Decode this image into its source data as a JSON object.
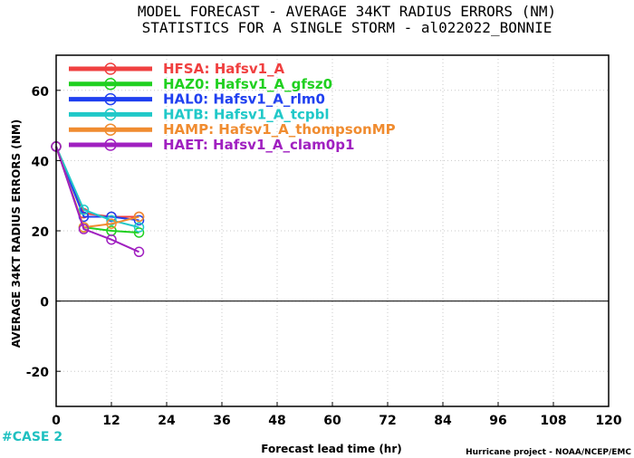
{
  "title_line1": "MODEL FORECAST - AVERAGE 34KT RADIUS ERRORS (NM)",
  "title_line2": "STATISTICS FOR A SINGLE STORM - al022022_BONNIE",
  "case_label": "#CASE 2",
  "credit": "Hurricane project - NOAA/NCEP/EMC",
  "chart_data": {
    "type": "line",
    "title": "MODEL FORECAST - AVERAGE 34KT RADIUS ERRORS (NM)",
    "subtitle": "STATISTICS FOR A SINGLE STORM - al022022_BONNIE",
    "xlabel": "Forecast lead time (hr)",
    "ylabel": "AVERAGE 34KT RADIUS ERRORS (NM)",
    "xlim": [
      0,
      120
    ],
    "ylim": [
      -30,
      70
    ],
    "xticks": [
      0,
      12,
      24,
      36,
      48,
      60,
      72,
      84,
      96,
      108,
      120
    ],
    "yticks": [
      -20,
      0,
      20,
      40,
      60
    ],
    "grid": true,
    "legend_position": "top-left",
    "x": [
      0,
      6,
      12,
      18
    ],
    "series": [
      {
        "name": "HFSA: Hafsv1_A",
        "color": "#f04040",
        "values": [
          44,
          25,
          24,
          24
        ]
      },
      {
        "name": "HAZ0: Hafsv1_A_gfsz0",
        "color": "#20d020",
        "values": [
          44,
          21,
          20,
          19.5
        ]
      },
      {
        "name": "HAL0: Hafsv1_A_rlm0",
        "color": "#2040f0",
        "values": [
          44,
          24,
          24,
          23
        ]
      },
      {
        "name": "HATB: Hafsv1_A_tcpbl",
        "color": "#20c8c8",
        "values": [
          44,
          26,
          23,
          21
        ]
      },
      {
        "name": "HAMP: Hafsv1_A_thompsonMP",
        "color": "#f08c30",
        "values": [
          44,
          21,
          22,
          24
        ]
      },
      {
        "name": "HAET: Hafsv1_A_clam0p1",
        "color": "#a020c0",
        "values": [
          44,
          20.5,
          17.5,
          14
        ]
      }
    ]
  }
}
